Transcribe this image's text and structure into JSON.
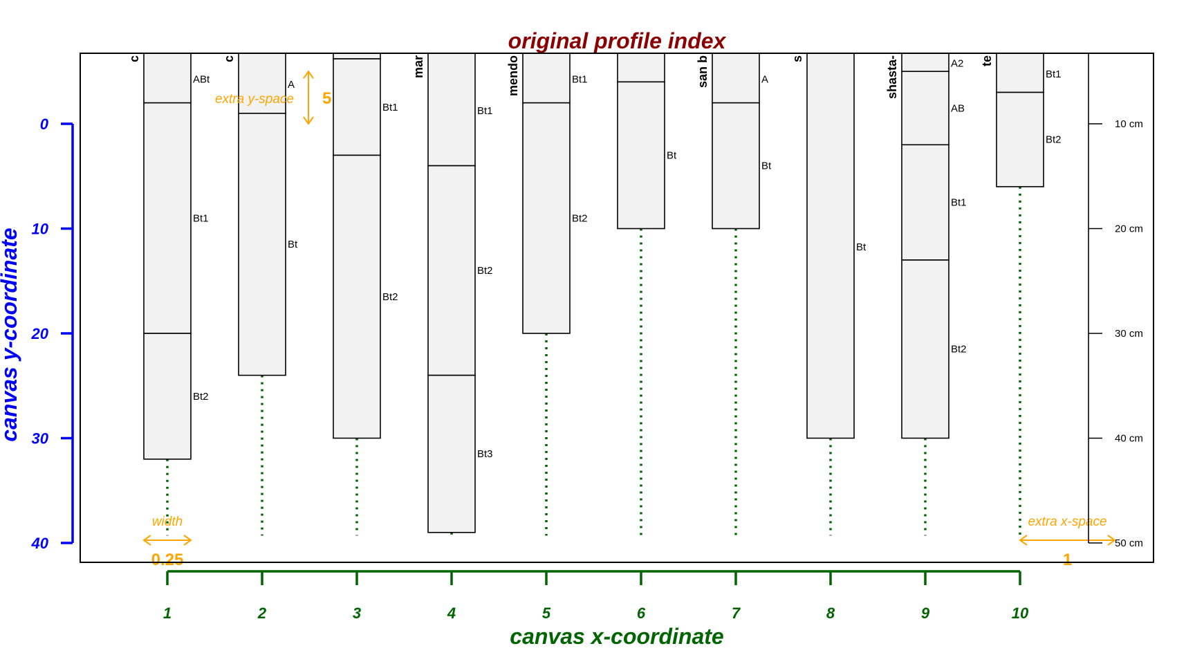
{
  "title": "original profile index",
  "x_axis": {
    "label": "canvas x-coordinate",
    "ticks": [
      "1",
      "2",
      "3",
      "4",
      "5",
      "6",
      "7",
      "8",
      "9",
      "10"
    ]
  },
  "y_axis": {
    "label": "canvas y-coordinate",
    "ticks": [
      "0",
      "10",
      "20",
      "30",
      "40"
    ]
  },
  "depth_axis": {
    "ticks": [
      "10 cm",
      "20 cm",
      "30 cm",
      "40 cm",
      "50 cm"
    ]
  },
  "colors": {
    "title": "#8B0000",
    "x_axis": "#006400",
    "y_axis": "#0000FF",
    "annotation": "#FFA500",
    "horizon_fill": "#F2F2F2"
  },
  "annotations": {
    "width_label": "width",
    "width_value": "0.25",
    "extra_y_label": "extra y-space",
    "extra_y_value": "5",
    "extra_x_label": "extra x-space",
    "extra_x_value": "1"
  },
  "profiles": [
    {
      "label": "c",
      "depth_bottom": 32,
      "horizons": [
        {
          "name": "ABt",
          "top": -7,
          "bottom": -2
        },
        {
          "name": "Bt1",
          "top": -2,
          "bottom": 20
        },
        {
          "name": "Bt2",
          "top": 20,
          "bottom": 32
        }
      ]
    },
    {
      "label": "c",
      "depth_bottom": 24,
      "horizons": [
        {
          "name": "A",
          "top": -7,
          "bottom": -1
        },
        {
          "name": "Bt",
          "top": -1,
          "bottom": 24
        }
      ]
    },
    {
      "label": "",
      "depth_bottom": 30,
      "horizons": [
        {
          "name": "",
          "top": -7,
          "bottom": -6.2
        },
        {
          "name": "Bt1",
          "top": -6.2,
          "bottom": 3
        },
        {
          "name": "Bt2",
          "top": 3,
          "bottom": 30
        }
      ]
    },
    {
      "label": "mar",
      "depth_bottom": 39,
      "horizons": [
        {
          "name": "Bt1",
          "top": -7,
          "bottom": 4
        },
        {
          "name": "Bt2",
          "top": 4,
          "bottom": 24
        },
        {
          "name": "Bt3",
          "top": 24,
          "bottom": 39
        }
      ]
    },
    {
      "label": "mendo",
      "depth_bottom": 20,
      "horizons": [
        {
          "name": "Bt1",
          "top": -7,
          "bottom": -2
        },
        {
          "name": "Bt2",
          "top": -2,
          "bottom": 20
        }
      ]
    },
    {
      "label": "",
      "depth_bottom": 10,
      "horizons": [
        {
          "name": "",
          "top": -7,
          "bottom": -4
        },
        {
          "name": "Bt",
          "top": -4,
          "bottom": 10
        }
      ]
    },
    {
      "label": "san b",
      "depth_bottom": 10,
      "horizons": [
        {
          "name": "A",
          "top": -7,
          "bottom": -2
        },
        {
          "name": "Bt",
          "top": -2,
          "bottom": 10
        }
      ]
    },
    {
      "label": "s",
      "depth_bottom": 30,
      "horizons": [
        {
          "name": "Bt",
          "top": -7,
          "bottom": 30
        }
      ]
    },
    {
      "label": "shasta-",
      "depth_bottom": 30,
      "horizons": [
        {
          "name": "A2",
          "top": -7,
          "bottom": -5
        },
        {
          "name": "AB",
          "top": -5,
          "bottom": 2
        },
        {
          "name": "Bt1",
          "top": 2,
          "bottom": 13
        },
        {
          "name": "Bt2",
          "top": 13,
          "bottom": 30
        }
      ]
    },
    {
      "label": "te",
      "depth_bottom": 6,
      "horizons": [
        {
          "name": "Bt1",
          "top": -7,
          "bottom": -3
        },
        {
          "name": "Bt2",
          "top": -3,
          "bottom": 6
        }
      ]
    }
  ]
}
